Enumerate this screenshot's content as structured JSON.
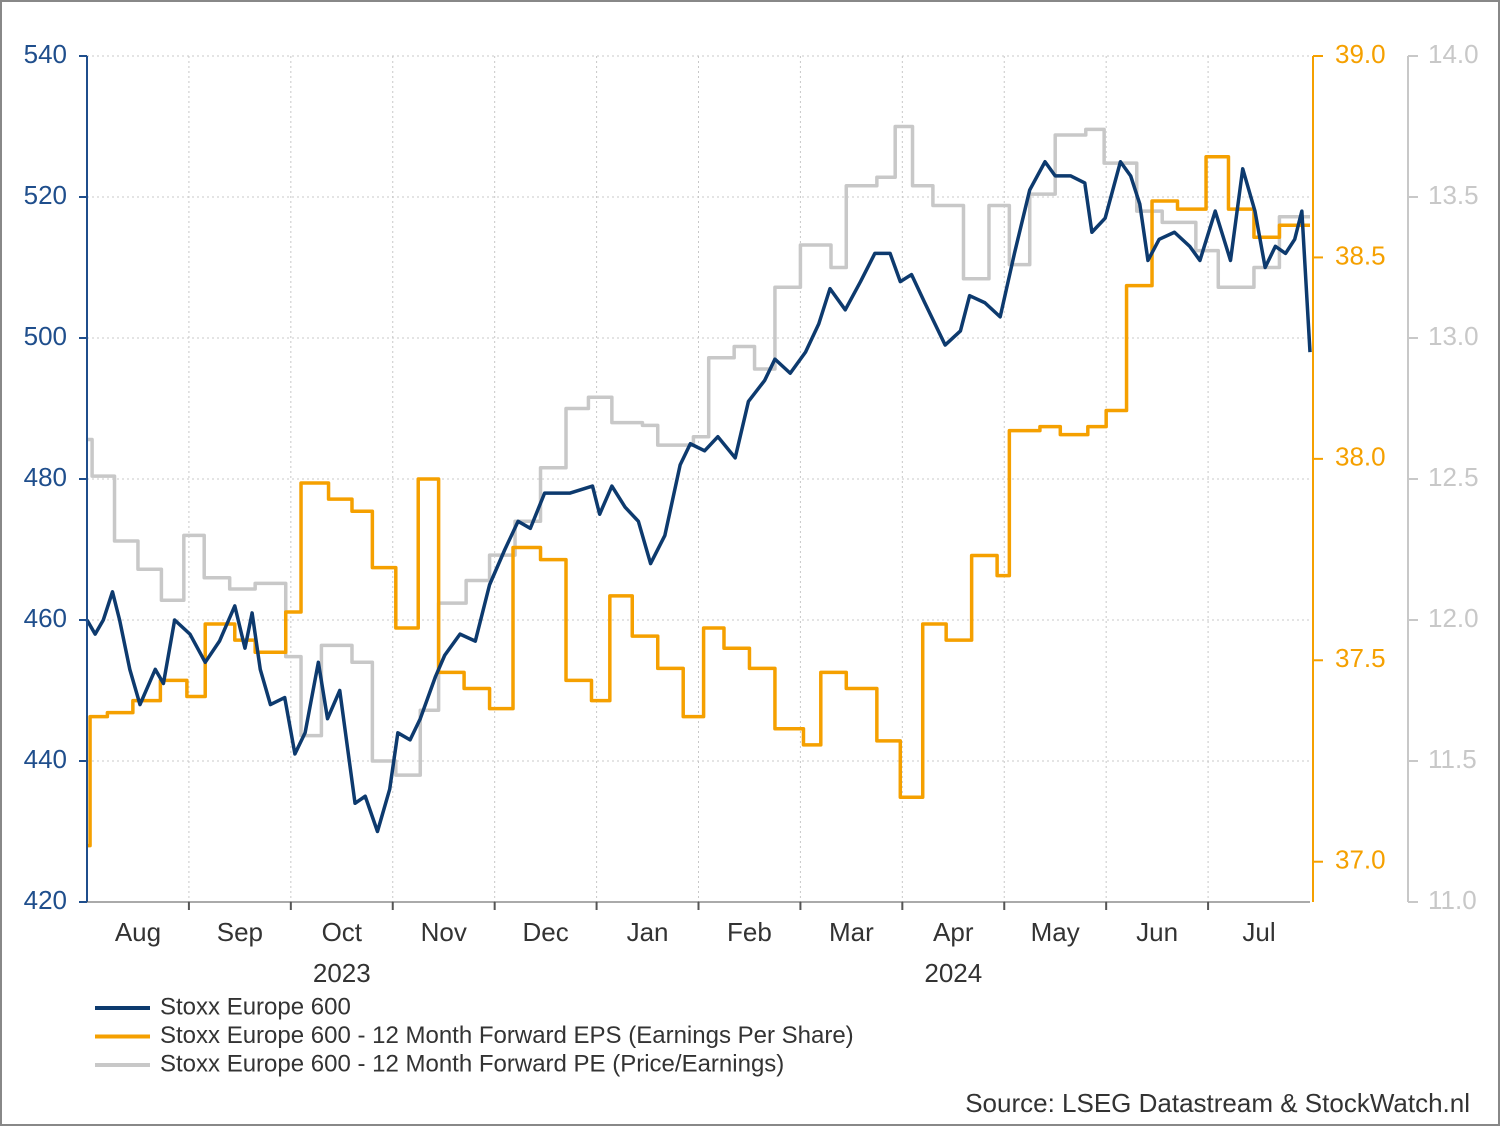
{
  "chart_data": {
    "type": "line",
    "source": "Source: LSEG Datastream & StockWatch.nl",
    "xlim": [
      0,
      12
    ],
    "xticks": [
      {
        "value": 0.5,
        "label": "Aug"
      },
      {
        "value": 1.5,
        "label": "Sep"
      },
      {
        "value": 2.5,
        "label": "Oct"
      },
      {
        "value": 3.5,
        "label": "Nov"
      },
      {
        "value": 4.5,
        "label": "Dec"
      },
      {
        "value": 5.5,
        "label": "Jan"
      },
      {
        "value": 6.5,
        "label": "Feb"
      },
      {
        "value": 7.5,
        "label": "Mar"
      },
      {
        "value": 8.5,
        "label": "Apr"
      },
      {
        "value": 9.5,
        "label": "May"
      },
      {
        "value": 10.5,
        "label": "Jun"
      },
      {
        "value": 11.5,
        "label": "Jul"
      }
    ],
    "x_group_labels": [
      {
        "label": "2023",
        "x": 2.5
      },
      {
        "label": "2024",
        "x": 8.5
      }
    ],
    "ylim": [
      420,
      540
    ],
    "yticks": [
      420,
      440,
      460,
      480,
      500,
      520,
      540
    ],
    "y2lim": [
      36.9,
      39.0
    ],
    "y2ticks": [
      {
        "value": 37,
        "label": "37.0"
      },
      {
        "value": 37.5,
        "label": "37.5"
      },
      {
        "value": 38,
        "label": "38.0"
      },
      {
        "value": 38.5,
        "label": "38.5"
      },
      {
        "value": 39,
        "label": "39.0"
      }
    ],
    "y3lim": [
      11.0,
      14.0
    ],
    "y3ticks": [
      {
        "value": 11,
        "label": "11.0"
      },
      {
        "value": 11.5,
        "label": "11.5"
      },
      {
        "value": 12,
        "label": "12.0"
      },
      {
        "value": 12.5,
        "label": "12.5"
      },
      {
        "value": 13,
        "label": "13.0"
      },
      {
        "value": 13.5,
        "label": "13.5"
      },
      {
        "value": 14,
        "label": "14.0"
      }
    ],
    "grid": true,
    "legend": "bottom-left",
    "series": [
      {
        "name": "Stoxx Europe 600",
        "color": "#0d3a6e",
        "axis": "y",
        "x": [
          0,
          0.08,
          0.16,
          0.25,
          0.32,
          0.42,
          0.52,
          0.67,
          0.75,
          0.86,
          1.01,
          1.16,
          1.3,
          1.45,
          1.55,
          1.62,
          1.7,
          1.8,
          1.94,
          2.04,
          2.14,
          2.27,
          2.36,
          2.48,
          2.63,
          2.73,
          2.85,
          2.97,
          3.05,
          3.17,
          3.27,
          3.42,
          3.51,
          3.66,
          3.81,
          3.95,
          4.1,
          4.23,
          4.35,
          4.49,
          4.74,
          4.96,
          5.03,
          5.15,
          5.28,
          5.41,
          5.53,
          5.67,
          5.82,
          5.92,
          6.06,
          6.19,
          6.36,
          6.49,
          6.65,
          6.75,
          6.9,
          7.05,
          7.18,
          7.29,
          7.44,
          7.59,
          7.73,
          7.88,
          7.98,
          8.09,
          8.22,
          8.42,
          8.57,
          8.66,
          8.81,
          8.96,
          9.1,
          9.25,
          9.4,
          9.5,
          9.65,
          9.79,
          9.86,
          9.99,
          10.14,
          10.24,
          10.33,
          10.41,
          10.52,
          10.67,
          10.82,
          10.92,
          11.07,
          11.22,
          11.34,
          11.46,
          11.56,
          11.66,
          11.76,
          11.85,
          11.92,
          12.0
        ],
        "values": [
          460,
          458,
          460,
          464,
          460,
          453,
          448,
          453,
          451,
          460,
          458,
          454,
          457,
          462,
          456,
          461,
          453,
          448,
          449,
          441,
          444,
          454,
          446,
          450,
          434,
          435,
          430,
          436,
          444,
          443,
          446,
          452,
          455,
          458,
          457,
          465,
          470,
          474,
          473,
          478,
          478,
          479,
          475,
          479,
          476,
          474,
          468,
          472,
          482,
          485,
          484,
          486,
          483,
          491,
          494,
          497,
          495,
          498,
          502,
          507,
          504,
          508,
          512,
          512,
          508,
          509,
          505,
          499,
          501,
          506,
          505,
          503,
          512,
          521,
          525,
          523,
          523,
          522,
          515,
          517,
          525,
          523,
          519,
          511,
          514,
          515,
          513,
          511,
          518,
          511,
          524,
          518,
          510,
          513,
          512,
          514,
          518,
          498
        ]
      },
      {
        "name": "Stoxx Europe 600 - 12 Month Forward EPS (Earnings Per Share)",
        "color": "#f5a000",
        "axis": "y2",
        "step": true,
        "x": [
          0,
          0.03,
          0.2,
          0.45,
          0.72,
          0.98,
          1.16,
          1.45,
          1.65,
          1.95,
          2.1,
          2.37,
          2.6,
          2.8,
          3.03,
          3.25,
          3.45,
          3.7,
          3.95,
          4.18,
          4.45,
          4.7,
          4.95,
          5.13,
          5.35,
          5.6,
          5.85,
          6.05,
          6.25,
          6.5,
          6.75,
          7.03,
          7.2,
          7.45,
          7.75,
          7.98,
          8.2,
          8.43,
          8.68,
          8.93,
          9.05,
          9.35,
          9.55,
          9.82,
          10.0,
          10.2,
          10.45,
          10.7,
          10.98,
          11.2,
          11.45,
          11.7,
          12.0
        ],
        "values": [
          37.04,
          37.36,
          37.37,
          37.4,
          37.45,
          37.41,
          37.59,
          37.55,
          37.52,
          37.62,
          37.94,
          37.9,
          37.87,
          37.73,
          37.58,
          37.95,
          37.47,
          37.43,
          37.38,
          37.78,
          37.75,
          37.45,
          37.4,
          37.66,
          37.56,
          37.48,
          37.36,
          37.58,
          37.53,
          37.48,
          37.33,
          37.29,
          37.47,
          37.43,
          37.3,
          37.16,
          37.59,
          37.55,
          37.76,
          37.71,
          38.07,
          38.08,
          38.06,
          38.08,
          38.12,
          38.43,
          38.64,
          38.62,
          38.75,
          38.62,
          38.55,
          38.58,
          38.58
        ]
      },
      {
        "name": "Stoxx Europe 600 - 12 Month Forward PE (Price/Earnings)",
        "color": "#c8c8c8",
        "axis": "y3",
        "step": true,
        "x": [
          0,
          0.05,
          0.27,
          0.5,
          0.73,
          0.95,
          1.15,
          1.4,
          1.65,
          1.95,
          2.1,
          2.3,
          2.6,
          2.8,
          3.03,
          3.27,
          3.45,
          3.72,
          3.95,
          4.2,
          4.45,
          4.7,
          4.92,
          5.15,
          5.45,
          5.6,
          5.95,
          6.1,
          6.35,
          6.55,
          6.75,
          7.0,
          7.3,
          7.45,
          7.75,
          7.93,
          8.1,
          8.3,
          8.6,
          8.85,
          9.05,
          9.25,
          9.5,
          9.8,
          9.98,
          10.3,
          10.55,
          10.88,
          11.1,
          11.45,
          11.7,
          12.0
        ],
        "values": [
          12.64,
          12.51,
          12.28,
          12.18,
          12.07,
          12.3,
          12.15,
          12.11,
          12.13,
          11.87,
          11.59,
          11.91,
          11.85,
          11.5,
          11.45,
          11.68,
          12.06,
          12.14,
          12.23,
          12.35,
          12.54,
          12.75,
          12.79,
          12.7,
          12.69,
          12.62,
          12.65,
          12.93,
          12.97,
          12.89,
          13.18,
          13.33,
          13.25,
          13.54,
          13.57,
          13.75,
          13.54,
          13.47,
          13.21,
          13.47,
          13.26,
          13.51,
          13.72,
          13.74,
          13.62,
          13.45,
          13.41,
          13.31,
          13.18,
          13.25,
          13.43,
          13.43
        ]
      }
    ]
  }
}
